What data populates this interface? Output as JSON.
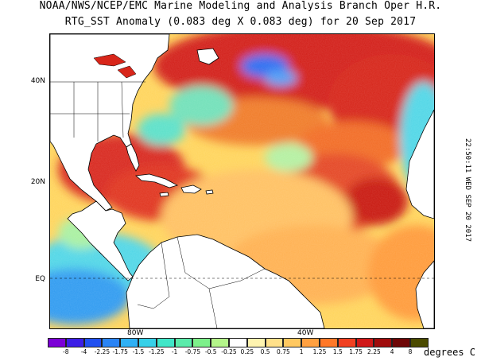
{
  "header": {
    "title_line1": "NOAA/NWS/NCEP/EMC Marine Modeling and Analysis Branch Oper H.R.",
    "title_line2": "RTG_SST Anomaly (0.083 deg X 0.083 deg) for 20 Sep 2017"
  },
  "map": {
    "lat_labels": [
      "40N",
      "20N",
      "EQ"
    ],
    "lon_labels": [
      "80W",
      "40W"
    ],
    "timestamp": "22:50:11 WED SEP 20 2017",
    "equator_line": "dashed"
  },
  "legend": {
    "unit_label": "degrees C",
    "tick_labels": [
      "-8",
      "-4",
      "-2.25",
      "-1.75",
      "-1.5",
      "-1.25",
      "-1",
      "-0.75",
      "-0.5",
      "-0.25",
      "0.25",
      "0.5",
      "0.75",
      "1",
      "1.25",
      "1.5",
      "1.75",
      "2.25",
      "4",
      "8"
    ],
    "colors": [
      "#7b00d6",
      "#3c1ee6",
      "#2050f0",
      "#2a84f5",
      "#2fb0f5",
      "#36d0e8",
      "#40e6c8",
      "#5aebaa",
      "#7df08a",
      "#b4f58a",
      "#ffffff",
      "#fff4b0",
      "#ffe08a",
      "#ffc860",
      "#ffa040",
      "#ff7828",
      "#f04020",
      "#d01818",
      "#a00c0c",
      "#6e0606",
      "#4a4a00"
    ]
  },
  "colors": {
    "land": "#ffffff",
    "ocean_warm": "#d8261a",
    "ocean_neutral": "#ffd870",
    "ocean_cool": "#4fd6e6",
    "coast": "#000000"
  }
}
